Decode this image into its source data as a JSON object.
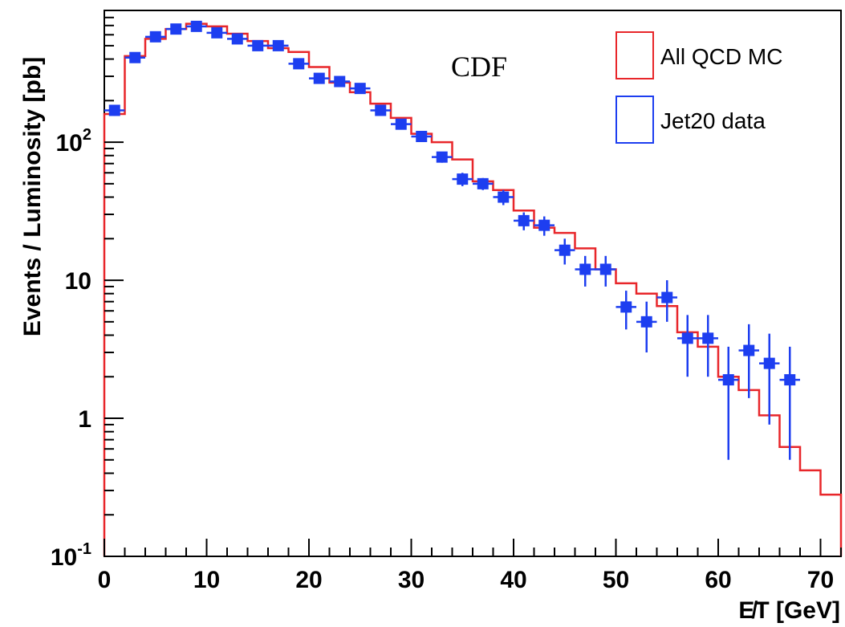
{
  "chart_data": {
    "type": "line",
    "xlabel": "E̸T [GeV]",
    "ylabel": "Events / Luminosity [pb]",
    "xlim": [
      0,
      72
    ],
    "ylim": [
      0.1,
      900
    ],
    "y_scale": "log",
    "grid": false,
    "legend_position": "top-right",
    "x_ticks": [
      0,
      10,
      20,
      30,
      40,
      50,
      60,
      70
    ],
    "x_tick_labels": [
      "0",
      "10",
      "20",
      "30",
      "40",
      "50",
      "60",
      "70"
    ],
    "y_ticks": [
      {
        "value": 0.1,
        "base": "10",
        "exp": "-1"
      },
      {
        "value": 1,
        "base": "1",
        "exp": ""
      },
      {
        "value": 10,
        "base": "10",
        "exp": ""
      },
      {
        "value": 100,
        "base": "10",
        "exp": "2"
      }
    ],
    "annotation": "CDF",
    "series": [
      {
        "name": "All QCD MC",
        "style": "step",
        "color": "#e8262a",
        "bin_edges": [
          0,
          2,
          4,
          6,
          8,
          10,
          12,
          14,
          16,
          18,
          20,
          22,
          24,
          26,
          28,
          30,
          32,
          34,
          36,
          38,
          40,
          42,
          44,
          46,
          48,
          50,
          52,
          54,
          56,
          58,
          60,
          62,
          64,
          66,
          68,
          70
        ],
        "values": [
          160,
          420,
          560,
          660,
          720,
          690,
          610,
          540,
          480,
          450,
          350,
          270,
          230,
          190,
          150,
          115,
          100,
          75,
          52,
          45,
          32,
          24,
          22,
          17,
          12,
          9.5,
          8,
          6.5,
          4.2,
          3.3,
          2.0,
          1.6,
          1.05,
          0.62,
          0.42,
          0.28
        ]
      },
      {
        "name": "Jet20 data",
        "style": "points",
        "color": "#1d3ef0",
        "x": [
          1,
          3,
          5,
          7,
          9,
          11,
          13,
          15,
          17,
          19,
          21,
          23,
          25,
          27,
          29,
          31,
          33,
          35,
          37,
          39,
          41,
          43,
          45,
          47,
          49,
          51,
          53,
          55,
          57,
          59,
          61,
          63,
          65,
          67
        ],
        "y": [
          170,
          410,
          580,
          660,
          690,
          620,
          560,
          500,
          500,
          370,
          290,
          275,
          245,
          170,
          135,
          110,
          78,
          54,
          50,
          40,
          27,
          25,
          16.5,
          12,
          12,
          6.4,
          5.0,
          7.5,
          3.8,
          3.8,
          1.9,
          3.1,
          2.5,
          1.9
        ],
        "y_err": [
          15,
          20,
          22,
          25,
          25,
          24,
          22,
          20,
          20,
          18,
          15,
          14,
          13,
          10,
          9,
          8,
          7,
          6,
          5,
          5,
          4,
          4,
          3.5,
          3,
          3,
          2,
          2,
          2.5,
          1.8,
          1.8,
          1.4,
          1.7,
          1.6,
          1.4
        ]
      }
    ]
  }
}
